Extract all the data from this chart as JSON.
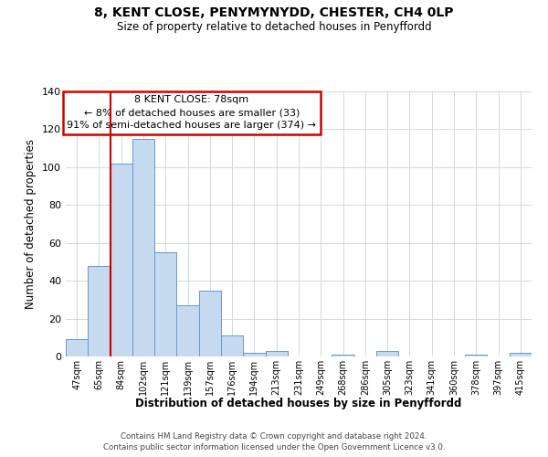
{
  "title": "8, KENT CLOSE, PENYMYNYDD, CHESTER, CH4 0LP",
  "subtitle": "Size of property relative to detached houses in Penyffordd",
  "xlabel": "Distribution of detached houses by size in Penyffordd",
  "ylabel": "Number of detached properties",
  "bar_labels": [
    "47sqm",
    "65sqm",
    "84sqm",
    "102sqm",
    "121sqm",
    "139sqm",
    "157sqm",
    "176sqm",
    "194sqm",
    "213sqm",
    "231sqm",
    "249sqm",
    "268sqm",
    "286sqm",
    "305sqm",
    "323sqm",
    "341sqm",
    "360sqm",
    "378sqm",
    "397sqm",
    "415sqm"
  ],
  "bar_values": [
    9,
    48,
    102,
    115,
    55,
    27,
    35,
    11,
    2,
    3,
    0,
    0,
    1,
    0,
    3,
    0,
    0,
    0,
    1,
    0,
    2
  ],
  "bar_color": "#c5d9ef",
  "bar_edge_color": "#6699cc",
  "vline_color": "#cc0000",
  "vline_x": 1.5,
  "ylim": [
    0,
    140
  ],
  "yticks": [
    0,
    20,
    40,
    60,
    80,
    100,
    120,
    140
  ],
  "annotation_title": "8 KENT CLOSE: 78sqm",
  "annotation_line1": "← 8% of detached houses are smaller (33)",
  "annotation_line2": "91% of semi-detached houses are larger (374) →",
  "annotation_box_color": "#ffffff",
  "annotation_box_edge": "#cc0000",
  "footer_line1": "Contains HM Land Registry data © Crown copyright and database right 2024.",
  "footer_line2": "Contains public sector information licensed under the Open Government Licence v3.0.",
  "background_color": "#ffffff",
  "grid_color": "#d0d8e4"
}
